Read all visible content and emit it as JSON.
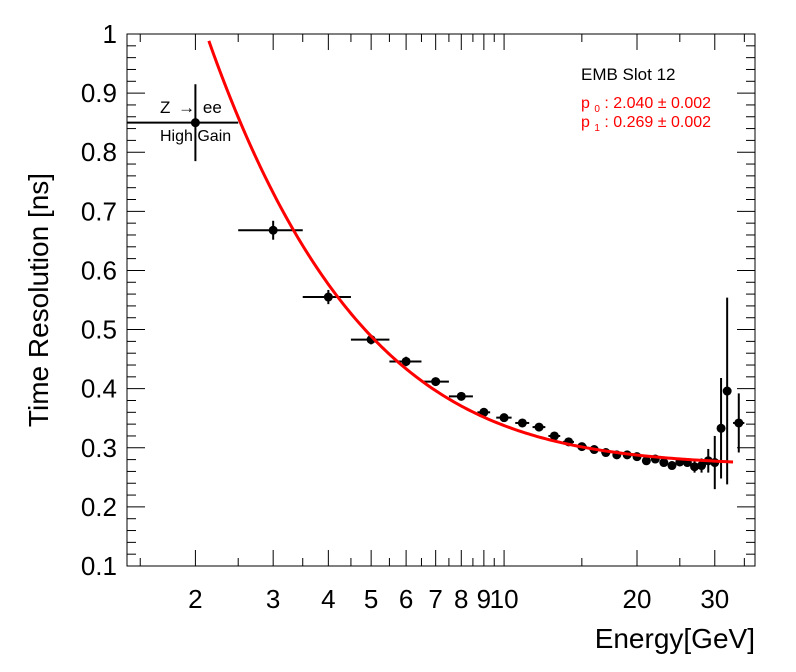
{
  "chart_data": {
    "type": "scatter",
    "xscale": "log",
    "xlim": [
      1.4,
      37
    ],
    "ylim": [
      0.1,
      1.0
    ],
    "xlabel": "Energy[GeV]",
    "ylabel": "Time Resolution [ns]",
    "x_tick_labels": [
      {
        "value": 2,
        "label": "2"
      },
      {
        "value": 3,
        "label": "3"
      },
      {
        "value": 4,
        "label": "4"
      },
      {
        "value": 5,
        "label": "5"
      },
      {
        "value": 6,
        "label": "6"
      },
      {
        "value": 7,
        "label": "7"
      },
      {
        "value": 8,
        "label": "8"
      },
      {
        "value": 9,
        "label": "9"
      },
      {
        "value": 10,
        "label": "10"
      },
      {
        "value": 20,
        "label": "20"
      },
      {
        "value": 30,
        "label": "30"
      }
    ],
    "y_tick_labels": [
      {
        "value": 0.1,
        "label": "0.1"
      },
      {
        "value": 0.2,
        "label": "0.2"
      },
      {
        "value": 0.3,
        "label": "0.3"
      },
      {
        "value": 0.4,
        "label": "0.4"
      },
      {
        "value": 0.5,
        "label": "0.5"
      },
      {
        "value": 0.6,
        "label": "0.6"
      },
      {
        "value": 0.7,
        "label": "0.7"
      },
      {
        "value": 0.8,
        "label": "0.8"
      },
      {
        "value": 0.9,
        "label": "0.9"
      },
      {
        "value": 1.0,
        "label": "1"
      }
    ],
    "series": [
      {
        "name": "data",
        "color": "#000000",
        "points": [
          {
            "x": 2.0,
            "y": 0.85,
            "xlo": 1.4,
            "xhi": 2.5,
            "yerr": 0.065
          },
          {
            "x": 3.0,
            "y": 0.668,
            "xlo": 2.5,
            "xhi": 3.5,
            "yerr": 0.016
          },
          {
            "x": 4.0,
            "y": 0.555,
            "xlo": 3.5,
            "xhi": 4.5,
            "yerr": 0.012
          },
          {
            "x": 5.0,
            "y": 0.483,
            "xlo": 4.5,
            "xhi": 5.5,
            "yerr": 0.008
          },
          {
            "x": 6.0,
            "y": 0.446,
            "xlo": 5.5,
            "xhi": 6.5,
            "yerr": 0.008
          },
          {
            "x": 7.0,
            "y": 0.412,
            "xlo": 6.5,
            "xhi": 7.5,
            "yerr": 0.007
          },
          {
            "x": 8.0,
            "y": 0.387,
            "xlo": 7.5,
            "xhi": 8.5,
            "yerr": 0.005
          },
          {
            "x": 9.0,
            "y": 0.36,
            "xlo": 8.7,
            "xhi": 9.3,
            "yerr": 0.005
          },
          {
            "x": 10.0,
            "y": 0.351,
            "xlo": 9.6,
            "xhi": 10.4,
            "yerr": 0.005
          },
          {
            "x": 11.0,
            "y": 0.342,
            "xlo": 10.6,
            "xhi": 11.4,
            "yerr": 0.005
          },
          {
            "x": 12.0,
            "y": 0.335,
            "xlo": 11.6,
            "xhi": 12.4,
            "yerr": 0.005
          },
          {
            "x": 13.0,
            "y": 0.32,
            "xlo": 12.6,
            "xhi": 13.4,
            "yerr": 0.005
          },
          {
            "x": 14.0,
            "y": 0.31,
            "xlo": 13.6,
            "xhi": 14.4,
            "yerr": 0.004
          },
          {
            "x": 15.0,
            "y": 0.302,
            "xlo": 14.6,
            "xhi": 15.4,
            "yerr": 0.004
          },
          {
            "x": 16.0,
            "y": 0.297,
            "xlo": 15.6,
            "xhi": 16.4,
            "yerr": 0.004
          },
          {
            "x": 17.0,
            "y": 0.292,
            "xlo": 16.6,
            "xhi": 17.4,
            "yerr": 0.004
          },
          {
            "x": 18.0,
            "y": 0.288,
            "xlo": 17.6,
            "xhi": 18.4,
            "yerr": 0.004
          },
          {
            "x": 19.0,
            "y": 0.288,
            "xlo": 18.6,
            "xhi": 19.4,
            "yerr": 0.004
          },
          {
            "x": 20.0,
            "y": 0.285,
            "xlo": 19.6,
            "xhi": 20.4,
            "yerr": 0.004
          },
          {
            "x": 21.0,
            "y": 0.278,
            "xlo": 20.6,
            "xhi": 21.4,
            "yerr": 0.004
          },
          {
            "x": 22.0,
            "y": 0.281,
            "xlo": 21.6,
            "xhi": 22.4,
            "yerr": 0.004
          },
          {
            "x": 23.0,
            "y": 0.275,
            "xlo": 22.6,
            "xhi": 23.4,
            "yerr": 0.004
          },
          {
            "x": 24.0,
            "y": 0.27,
            "xlo": 23.6,
            "xhi": 24.4,
            "yerr": 0.005
          },
          {
            "x": 25.0,
            "y": 0.276,
            "xlo": 24.6,
            "xhi": 25.4,
            "yerr": 0.006
          },
          {
            "x": 26.0,
            "y": 0.275,
            "xlo": 25.6,
            "xhi": 26.4,
            "yerr": 0.007
          },
          {
            "x": 27.0,
            "y": 0.268,
            "xlo": 26.6,
            "xhi": 27.4,
            "yerr": 0.01
          },
          {
            "x": 28.0,
            "y": 0.27,
            "xlo": 27.6,
            "xhi": 28.4,
            "yerr": 0.012
          },
          {
            "x": 29.0,
            "y": 0.278,
            "xlo": 28.6,
            "xhi": 29.4,
            "yerr": 0.02
          },
          {
            "x": 30.0,
            "y": 0.275,
            "xlo": 29.6,
            "xhi": 30.4,
            "yerr": 0.045
          },
          {
            "x": 31.0,
            "y": 0.333,
            "xlo": 30.6,
            "xhi": 31.4,
            "yerr": 0.085
          },
          {
            "x": 32.0,
            "y": 0.396,
            "xlo": 31.6,
            "xhi": 32.4,
            "yerr": 0.158
          },
          {
            "x": 34.0,
            "y": 0.342,
            "xlo": 33.0,
            "xhi": 35.0,
            "yerr": 0.05
          }
        ]
      }
    ],
    "fit": {
      "name": "fit",
      "color": "#ff0000",
      "formula": "sqrt((p0/E)^2 + p1^2)",
      "p0": 2.04,
      "p1": 0.269,
      "x_range": [
        2.0,
        33.0
      ],
      "label_p0": "p",
      "label_p0_sub": "0",
      "label_p0_value": ": 2.040",
      "label_p0_err": "± 0.002",
      "label_p1": "p",
      "label_p1_sub": "1",
      "label_p1_value": ": 0.269",
      "label_p1_err": "± 0.002"
    },
    "annotations": {
      "slot_label": "EMB Slot 12",
      "process_prefix": "Z",
      "process_arrow": "→",
      "process_suffix": "ee",
      "gain_label": "High Gain"
    }
  }
}
